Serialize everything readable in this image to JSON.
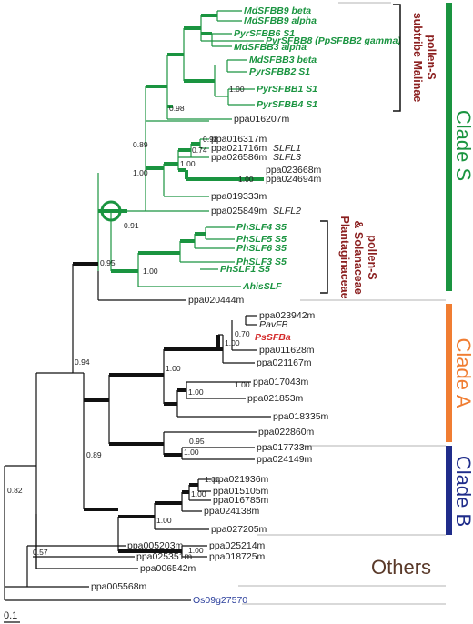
{
  "colors": {
    "green": "#1a9440",
    "black": "#111111",
    "red": "#d42a2a",
    "blue": "#2b3f9c",
    "orange": "#f07d32",
    "navy": "#1f2c8a",
    "brown": "#8a1e1e",
    "gray": "#9a9a9a"
  },
  "leaves": {
    "MdSFBB9_beta": "MdSFBB9 beta",
    "MdSFBB9_alpha": "MdSFBB9 alpha",
    "PyrSFBB6": "PyrSFBB6 S1",
    "PyrSFBB8": "PyrSFBB8 (PpSFBB2 gamma)",
    "MdSFBB3_alpha": "MdSFBB3 alpha",
    "MdSFBB3_beta": "MdSFBB3 beta",
    "PyrSFBB2": "PyrSFBB2 S1",
    "PyrSFBB1": "PyrSFBB1 S1",
    "PyrSFBB4": "PyrSFBB4 S1",
    "ppa016207m": "ppa016207m",
    "ppa016317m": "ppa016317m",
    "ppa021716m": "ppa021716m",
    "SLFL1": "SLFL1",
    "ppa026586m": "ppa026586m",
    "SLFL3": "SLFL3",
    "ppa023668m": "ppa023668m",
    "ppa024694m": "ppa024694m",
    "ppa019333m": "ppa019333m",
    "ppa025849m": "ppa025849m",
    "SLFL2": "SLFL2",
    "PhSLF4": "PhSLF4 S5",
    "PhSLF5": "PhSLF5 S5",
    "PhSLF6": "PhSLF6 S5",
    "PhSLF3": "PhSLF3 S5",
    "PhSLF1": "PhSLF1 S5",
    "AhisSLF": "AhisSLF",
    "ppa020444m": "ppa020444m",
    "ppa023942m": "ppa023942m",
    "PavFB": "PavFB",
    "PsSFBa": "PsSFBa",
    "ppa011628m": "ppa011628m",
    "ppa021167m": "ppa021167m",
    "ppa017043m": "ppa017043m",
    "ppa021853m": "ppa021853m",
    "ppa018335m": "ppa018335m",
    "ppa022860m": "ppa022860m",
    "ppa017733m": "ppa017733m",
    "ppa024149m": "ppa024149m",
    "ppa021936m": "ppa021936m",
    "ppa015105m": "ppa015105m",
    "ppa016785m": "ppa016785m",
    "ppa024138m": "ppa024138m",
    "ppa027205m": "ppa027205m",
    "ppa025214m": "ppa025214m",
    "ppa018725m": "ppa018725m",
    "ppa005203m": "ppa005203m",
    "ppa025351m": "ppa025351m",
    "ppa006542m": "ppa006542m",
    "ppa005568m": "ppa005568m",
    "Os09g27570": "Os09g27570"
  },
  "support": {
    "s100a": "1.00",
    "s098a": "0.98",
    "s098b": "0.98",
    "s074": "0.74",
    "s100b": "1.00",
    "s089a": "0.89",
    "s100c": "1.00",
    "s100d": "1.00",
    "s091": "0.91",
    "s095": "0.95",
    "s100e": "1.00",
    "s070": "0.70",
    "s100f": "1.00",
    "s100g": "1.00",
    "s100h": "1.00",
    "s100i": "1.00",
    "s095b": "0.95",
    "s100j": "1.00",
    "s094": "0.94",
    "s089b": "0.89",
    "s100k": "1.00",
    "s100l": "1.00",
    "s100m": "1.00",
    "s100n": "1.00",
    "s082": "0.82",
    "s057": "0.57"
  },
  "labels": {
    "malinae_1": "subtribe Malinae",
    "malinae_2": "pollen-S",
    "planta_1": "Plantaginaceae",
    "planta_2": "& Solanaceae",
    "planta_3": "pollen-S",
    "clade_s": "Clade S",
    "clade_a": "Clade A",
    "clade_b": "Clade B",
    "others": "Others",
    "scale": "0.1"
  }
}
